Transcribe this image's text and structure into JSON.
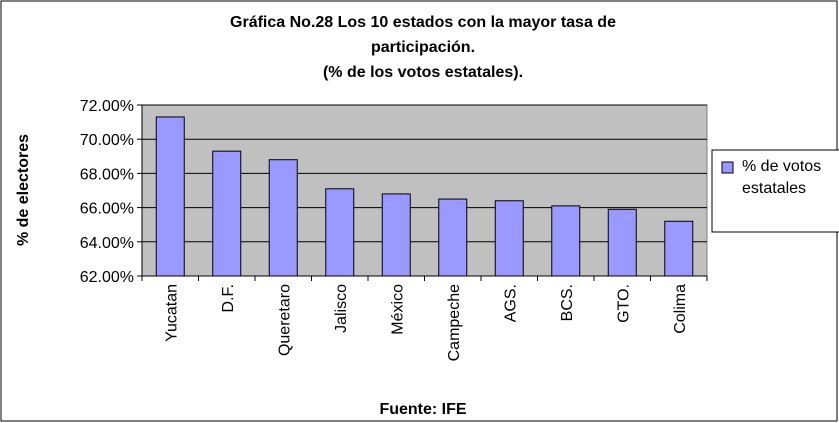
{
  "chart_data": {
    "type": "bar",
    "title": [
      "Gráfica No.28 Los 10 estados con la mayor tasa de",
      "participación.",
      "(% de los votos estatales)."
    ],
    "x_label": "Fuente: IFE",
    "y_label": "% de electores",
    "categories": [
      "Yucatan",
      "D.F.",
      "Queretaro",
      "Jalisco",
      "México",
      "Campeche",
      "AGS.",
      "BCS.",
      "GTO.",
      "Colima"
    ],
    "series": [
      {
        "name": "% de votos estatales",
        "color": "#9999ff",
        "values": [
          71.3,
          69.3,
          68.8,
          67.1,
          66.8,
          66.5,
          66.4,
          66.1,
          65.9,
          65.2
        ]
      }
    ],
    "ylim": [
      62,
      72
    ],
    "yticks": [
      {
        "value": 62,
        "label": "62.00%"
      },
      {
        "value": 64,
        "label": "64.00%"
      },
      {
        "value": 66,
        "label": "66.00%"
      },
      {
        "value": 68,
        "label": "68.00%"
      },
      {
        "value": 70,
        "label": "70.00%"
      },
      {
        "value": 72,
        "label": "72.00%"
      }
    ],
    "grid": true,
    "plot_background": "#c0c0c0",
    "legend": "right"
  }
}
